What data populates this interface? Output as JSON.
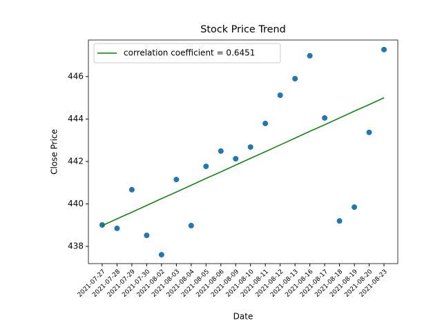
{
  "chart_data": {
    "type": "scatter",
    "title": "Stock Price Trend",
    "xlabel": "Date",
    "ylabel": "Close Price",
    "categories": [
      "2021-07-27",
      "2021-07-28",
      "2021-07-29",
      "2021-07-30",
      "2021-08-02",
      "2021-08-03",
      "2021-08-04",
      "2021-08-05",
      "2021-08-06",
      "2021-08-09",
      "2021-08-10",
      "2021-08-11",
      "2021-08-12",
      "2021-08-13",
      "2021-08-16",
      "2021-08-17",
      "2021-08-18",
      "2021-08-19",
      "2021-08-20",
      "2021-08-23"
    ],
    "series": [
      {
        "kind": "scatter",
        "color": "#1f77b4",
        "values": [
          439.01,
          438.85,
          440.67,
          438.52,
          437.61,
          441.15,
          438.98,
          441.77,
          442.49,
          442.13,
          442.68,
          443.79,
          445.12,
          445.9,
          446.98,
          444.05,
          439.2,
          439.85,
          443.37,
          447.27
        ]
      },
      {
        "kind": "line",
        "name": "correlation coefficient = 0.6451",
        "color": "#008000",
        "values": [
          438.98,
          439.3,
          439.61,
          439.93,
          440.25,
          440.56,
          440.88,
          441.2,
          441.51,
          441.83,
          442.15,
          442.46,
          442.78,
          443.1,
          443.42,
          443.73,
          444.05,
          444.37,
          444.68,
          445.0
        ]
      }
    ],
    "xlim": [
      -0.93,
      19.93
    ],
    "ylim": [
      437.19,
      447.72
    ],
    "yticks": [
      438,
      440,
      442,
      444,
      446
    ],
    "legend": "upper left"
  }
}
